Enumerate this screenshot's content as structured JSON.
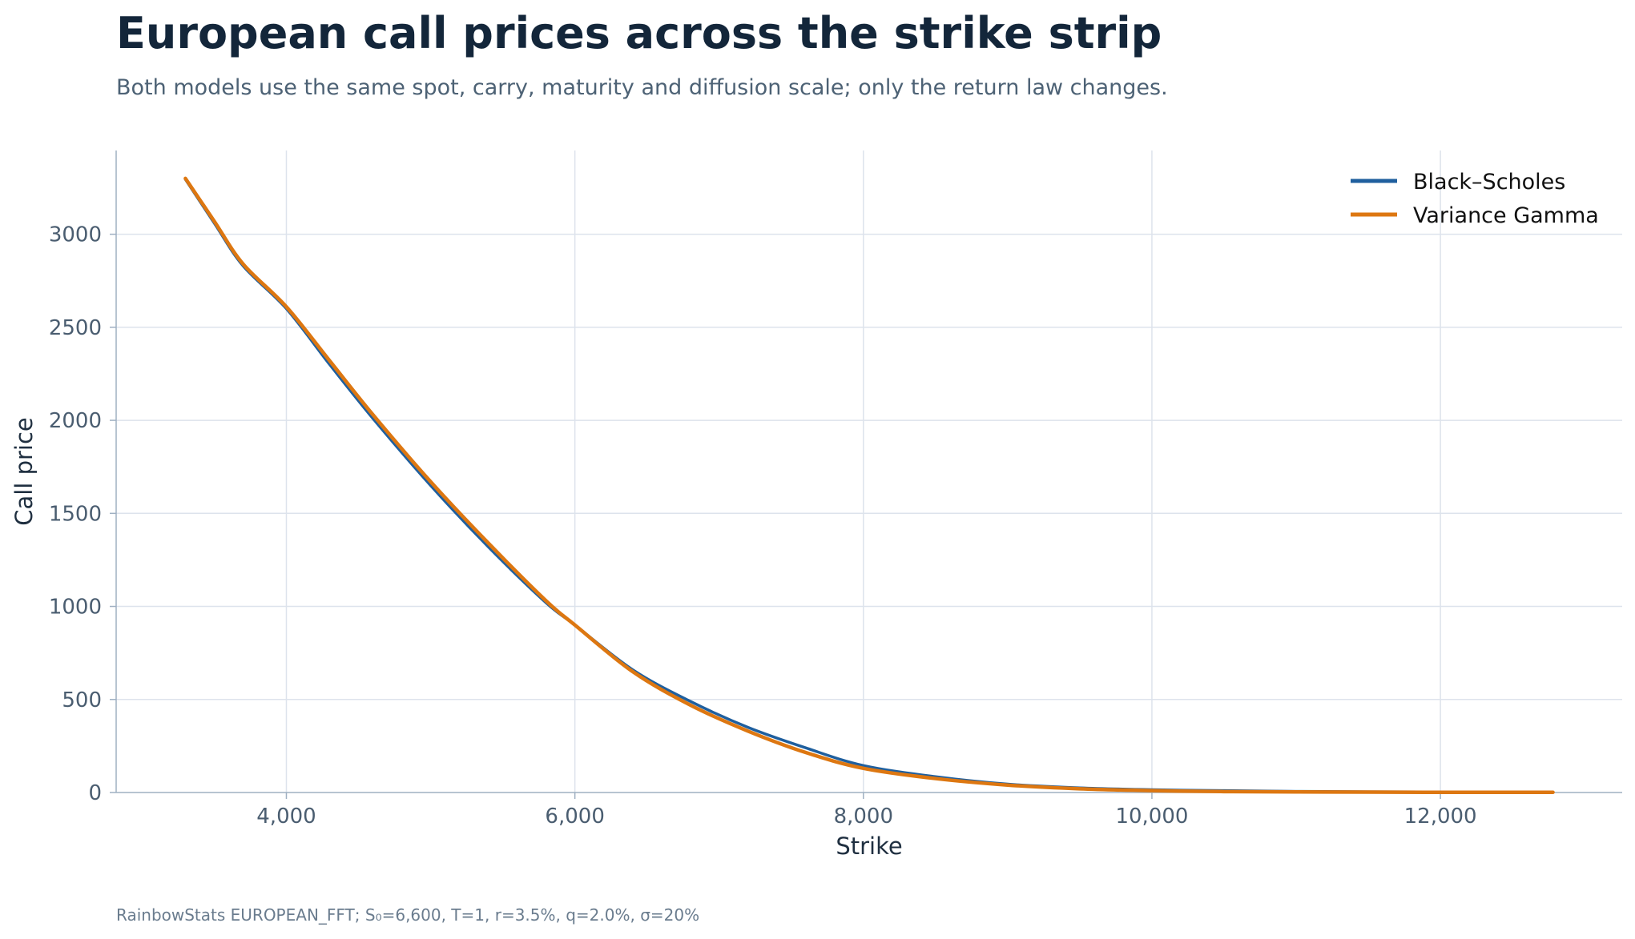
{
  "header": {
    "title": "European call prices across the strike strip",
    "subtitle": "Both models use the same spot, carry, maturity and diffusion scale; only the return law changes."
  },
  "footnote": "RainbowStats EUROPEAN_FFT; S₀=6,600, T=1, r=3.5%, q=2.0%, σ=20%",
  "chart_data": {
    "type": "line",
    "title": "European call prices across the strike strip",
    "subtitle": "Both models use the same spot, carry, maturity and diffusion scale; only the return law changes.",
    "xlabel": "Strike",
    "ylabel": "Call price",
    "xlim": [
      2820,
      13260
    ],
    "ylim": [
      0,
      3450
    ],
    "x_ticks": [
      4000,
      6000,
      8000,
      10000,
      12000
    ],
    "x_tick_labels": [
      "4,000",
      "6,000",
      "8,000",
      "10,000",
      "12,000"
    ],
    "y_ticks": [
      0,
      500,
      1000,
      1500,
      2000,
      2500,
      3000
    ],
    "y_tick_labels": [
      "0",
      "500",
      "1000",
      "1500",
      "2000",
      "2500",
      "3000"
    ],
    "grid": true,
    "legend_position": "top-right",
    "x": [
      3300,
      3500,
      3700,
      4000,
      4300,
      4600,
      5000,
      5400,
      5800,
      6000,
      6400,
      6800,
      7200,
      7600,
      8000,
      8500,
      9000,
      9500,
      10000,
      10500,
      11000,
      11500,
      12000,
      12500,
      12780
    ],
    "series": [
      {
        "name": "Black–Scholes",
        "color": "#1f5f9e",
        "values": [
          3295,
          3060,
          2830,
          2600,
          2300,
          2010,
          1650,
          1320,
          1020,
          900,
          660,
          490,
          350,
          240,
          145,
          85,
          45,
          25,
          15,
          10,
          6,
          4,
          3,
          2,
          2
        ]
      },
      {
        "name": "Variance Gamma",
        "color": "#dd7711",
        "values": [
          3300,
          3070,
          2840,
          2610,
          2320,
          2030,
          1670,
          1340,
          1030,
          900,
          650,
          470,
          330,
          215,
          130,
          75,
          40,
          20,
          10,
          5,
          3,
          2,
          1,
          1,
          1
        ]
      }
    ]
  }
}
